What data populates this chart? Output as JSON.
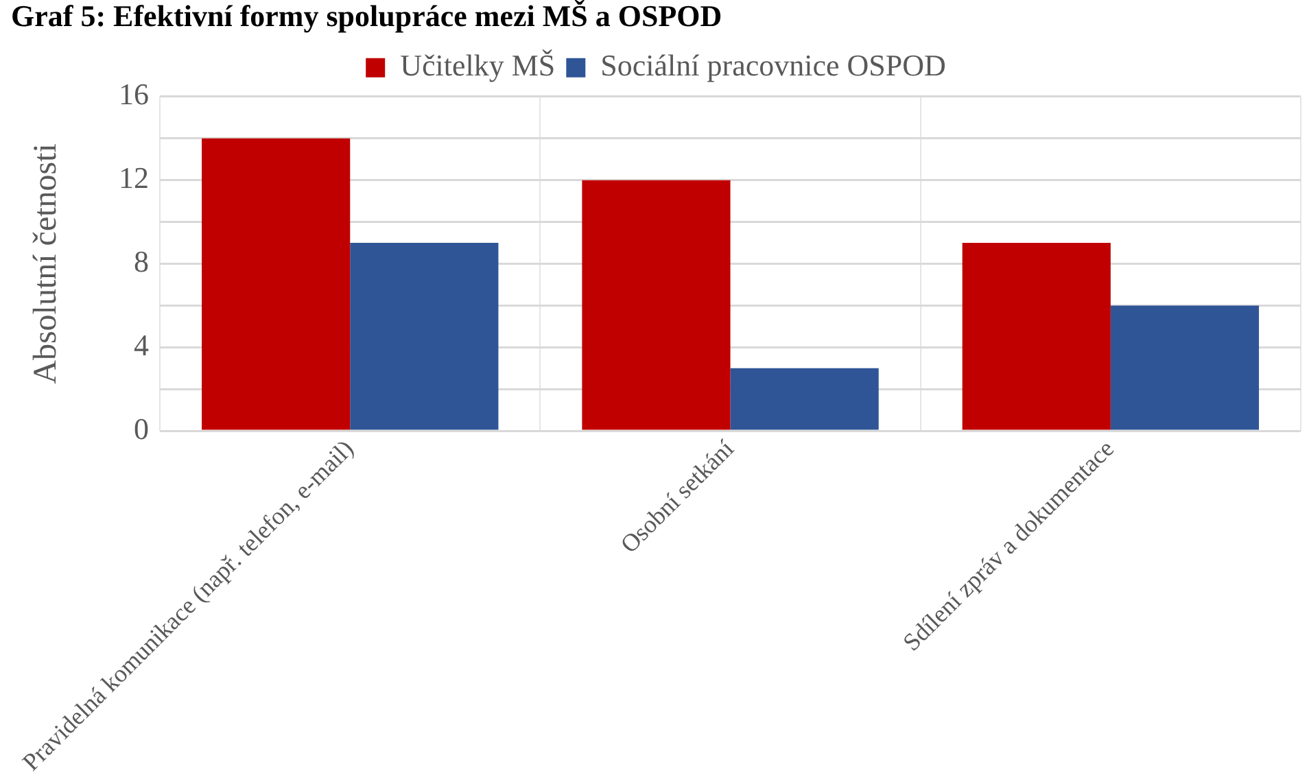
{
  "chart_data": {
    "type": "bar",
    "title": "Graf 5: Efektivní formy spolupráce mezi MŠ a OSPOD",
    "ylabel": "Absolutní četnosti",
    "categories": [
      "Pravidelná komunikace (např. telefon, e-mail)",
      "Osobní setkání",
      "Sdílení zpráv a dokumentace"
    ],
    "series": [
      {
        "name": "Učitelky MŠ",
        "color": "#c00000",
        "values": [
          14,
          12,
          9
        ]
      },
      {
        "name": "Sociální pracovnice OSPOD",
        "color": "#2f5597",
        "values": [
          9,
          3,
          6
        ]
      }
    ],
    "ylim": [
      0,
      16
    ],
    "yticks": [
      0,
      {
        "value": 2,
        "label": null
      },
      4,
      {
        "value": 6,
        "label": null
      },
      8,
      {
        "value": 10,
        "label": null
      },
      12,
      {
        "value": 14,
        "label": null
      },
      16
    ],
    "grid": true,
    "legend": "top"
  }
}
